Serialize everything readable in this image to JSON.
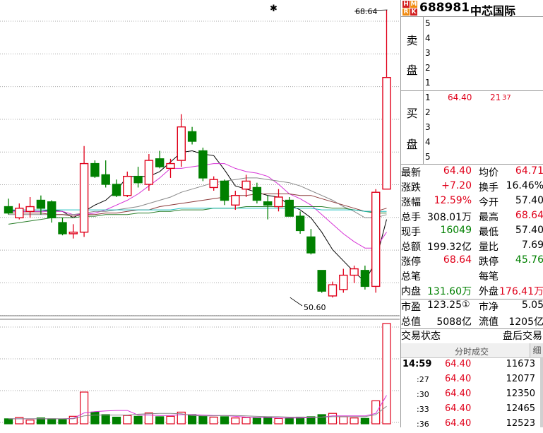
{
  "chart": {
    "marker": "✱",
    "high_label": "68.64",
    "low_label": "50.60"
  },
  "header": {
    "badge": [
      "H",
      "M",
      "R",
      "K"
    ],
    "code": "688981",
    "name": "中芯国际"
  },
  "orderbook": {
    "sell_label_1": "卖",
    "sell_label_2": "盘",
    "sell_levels": [
      "5",
      "4",
      "3",
      "2",
      "1"
    ],
    "buy_label_1": "买",
    "buy_label_2": "盘",
    "buy_levels": [
      "1",
      "2",
      "3",
      "4",
      "5"
    ],
    "buy1_price": "64.40",
    "buy1_volume": "21",
    "buy1_volume_small": "37"
  },
  "stats": [
    {
      "l1": "最新",
      "v1": "64.40",
      "c1": "red",
      "l2": "均价",
      "v2": "64.71",
      "c2": "red"
    },
    {
      "l1": "涨跌",
      "v1": "+7.20",
      "c1": "red",
      "l2": "换手",
      "v2": "16.46%",
      "c2": "black"
    },
    {
      "l1": "涨幅",
      "v1": "12.59%",
      "c1": "red",
      "l2": "今开",
      "v2": "57.40",
      "c2": "black"
    },
    {
      "l1": "总手",
      "v1": "308.01万",
      "c1": "black",
      "l2": "最高",
      "v2": "68.64",
      "c2": "red"
    },
    {
      "l1": "现手",
      "v1": "16049",
      "c1": "grn",
      "l2": "最低",
      "v2": "57.40",
      "c2": "black"
    },
    {
      "l1": "总额",
      "v1": "199.32亿",
      "c1": "black",
      "l2": "量比",
      "v2": "7.69",
      "c2": "black"
    },
    {
      "l1": "涨停",
      "v1": "68.64",
      "c1": "red",
      "l2": "跌停",
      "v2": "45.76",
      "c2": "grn"
    },
    {
      "l1": "总笔",
      "v1": "",
      "c1": "black",
      "l2": "每笔",
      "v2": "",
      "c2": "black"
    },
    {
      "l1": "内盘",
      "v1": "131.60万",
      "c1": "grn",
      "l2": "外盘",
      "v2": "176.41万",
      "c2": "red"
    }
  ],
  "stats2": [
    {
      "l1": "市盈",
      "v1": "123.25",
      "icon": "①",
      "l2": "市净",
      "v2": "5.05"
    },
    {
      "l1": "总值",
      "v1": "5088亿",
      "icon": "",
      "l2": "流值",
      "v2": "1205亿"
    }
  ],
  "trade_status": {
    "left": "交易状态",
    "right": "盘后交易"
  },
  "ticks": {
    "title": "分时成交",
    "side_button": "细",
    "rows": [
      {
        "time": "14:59",
        "price": "64.40",
        "vol": "11673"
      },
      {
        "time": ":27",
        "price": "64.40",
        "vol": "12077"
      },
      {
        "time": ":30",
        "price": "64.40",
        "vol": "12350"
      },
      {
        "time": ":33",
        "price": "64.40",
        "vol": "12465"
      },
      {
        "time": ":36",
        "price": "64.40",
        "vol": "12523"
      }
    ]
  },
  "colors": {
    "up": "#e0001a",
    "down": "#008000",
    "grid": "#a9a9a9"
  },
  "chart_data": {
    "type": "candlestick",
    "candles": [
      {
        "o": 56.3,
        "h": 56.8,
        "l": 55.8,
        "c": 55.9
      },
      {
        "o": 55.6,
        "h": 56.5,
        "l": 55.5,
        "c": 56.2
      },
      {
        "o": 56.0,
        "h": 56.9,
        "l": 55.6,
        "c": 56.3
      },
      {
        "o": 56.7,
        "h": 57.0,
        "l": 55.8,
        "c": 56.2
      },
      {
        "o": 56.6,
        "h": 56.7,
        "l": 55.3,
        "c": 55.6
      },
      {
        "o": 55.3,
        "h": 55.6,
        "l": 54.5,
        "c": 54.6
      },
      {
        "o": 54.6,
        "h": 55.2,
        "l": 54.3,
        "c": 54.7
      },
      {
        "o": 54.7,
        "h": 60.1,
        "l": 54.4,
        "c": 59.0
      },
      {
        "o": 59.0,
        "h": 59.2,
        "l": 58.1,
        "c": 58.2
      },
      {
        "o": 58.3,
        "h": 59.2,
        "l": 57.5,
        "c": 57.7
      },
      {
        "o": 57.7,
        "h": 58.0,
        "l": 56.9,
        "c": 57.0
      },
      {
        "o": 57.0,
        "h": 58.5,
        "l": 56.9,
        "c": 58.2
      },
      {
        "o": 58.2,
        "h": 58.8,
        "l": 57.5,
        "c": 57.8
      },
      {
        "o": 57.7,
        "h": 59.6,
        "l": 57.3,
        "c": 59.2
      },
      {
        "o": 59.3,
        "h": 59.8,
        "l": 58.7,
        "c": 58.8
      },
      {
        "o": 58.7,
        "h": 59.3,
        "l": 58.1,
        "c": 59.0
      },
      {
        "o": 59.2,
        "h": 62.1,
        "l": 58.8,
        "c": 61.3
      },
      {
        "o": 61.0,
        "h": 61.3,
        "l": 60.2,
        "c": 60.4
      },
      {
        "o": 59.8,
        "h": 60.0,
        "l": 57.9,
        "c": 58.1
      },
      {
        "o": 57.5,
        "h": 58.2,
        "l": 57.3,
        "c": 58.0
      },
      {
        "o": 57.9,
        "h": 58.0,
        "l": 56.4,
        "c": 56.7
      },
      {
        "o": 56.4,
        "h": 57.3,
        "l": 56.1,
        "c": 57.0
      },
      {
        "o": 57.4,
        "h": 58.3,
        "l": 56.9,
        "c": 57.9
      },
      {
        "o": 57.5,
        "h": 57.8,
        "l": 56.5,
        "c": 56.7
      },
      {
        "o": 56.6,
        "h": 57.0,
        "l": 55.5,
        "c": 56.4
      },
      {
        "o": 56.3,
        "h": 57.4,
        "l": 56.0,
        "c": 56.9
      },
      {
        "o": 56.7,
        "h": 56.9,
        "l": 55.7,
        "c": 55.7
      },
      {
        "o": 55.7,
        "h": 56.0,
        "l": 54.6,
        "c": 54.8
      },
      {
        "o": 54.4,
        "h": 54.9,
        "l": 53.3,
        "c": 53.4
      },
      {
        "o": 52.3,
        "h": 52.3,
        "l": 50.9,
        "c": 51.0
      },
      {
        "o": 50.7,
        "h": 51.6,
        "l": 50.6,
        "c": 51.4
      },
      {
        "o": 51.1,
        "h": 52.4,
        "l": 50.9,
        "c": 52.0
      },
      {
        "o": 52.0,
        "h": 52.6,
        "l": 51.5,
        "c": 52.4
      },
      {
        "o": 52.3,
        "h": 52.6,
        "l": 51.1,
        "c": 51.3
      },
      {
        "o": 51.3,
        "h": 57.4,
        "l": 50.9,
        "c": 57.2
      },
      {
        "o": 57.4,
        "h": 68.64,
        "l": 57.4,
        "c": 64.4
      }
    ],
    "ma": [
      {
        "name": "MA5",
        "color": "#000000",
        "values": [
          56.1,
          56.0,
          56.0,
          56.0,
          56.1,
          56.0,
          55.6,
          56.0,
          56.4,
          56.7,
          57.3,
          58.2,
          58.2,
          58.2,
          58.5,
          59.1,
          59.7,
          59.8,
          59.6,
          59.5,
          58.6,
          57.6,
          57.4,
          57.2,
          57.0,
          56.9,
          56.4,
          56.1,
          55.6,
          54.7,
          53.6,
          52.9,
          52.2,
          51.6,
          52.9,
          55.5
        ]
      },
      {
        "name": "MA10",
        "color": "#d633d6",
        "values": [
          56.0,
          56.0,
          56.0,
          56.0,
          56.0,
          56.0,
          55.8,
          55.8,
          55.9,
          56.1,
          56.4,
          56.7,
          57.1,
          57.6,
          58.1,
          58.7,
          58.7,
          58.8,
          58.9,
          59.0,
          59.0,
          58.7,
          58.5,
          58.4,
          58.2,
          57.7,
          57.1,
          56.8,
          56.4,
          55.8,
          55.2,
          54.6,
          54.1,
          53.7,
          53.7,
          54.7
        ]
      },
      {
        "name": "MA20",
        "color": "#888888",
        "values": [
          55.8,
          55.8,
          55.8,
          55.8,
          55.8,
          55.8,
          55.8,
          55.9,
          56.0,
          56.0,
          56.1,
          56.2,
          56.3,
          56.5,
          56.7,
          56.9,
          57.2,
          57.4,
          57.6,
          57.8,
          57.9,
          58.0,
          58.1,
          58.1,
          58.0,
          57.9,
          57.8,
          57.6,
          57.3,
          57.0,
          56.7,
          56.3,
          56.0,
          55.6,
          55.6,
          55.8
        ]
      },
      {
        "name": "MA30",
        "color": "#8b3a3a",
        "values": [
          55.9,
          55.9,
          55.9,
          55.9,
          55.8,
          55.8,
          55.7,
          55.8,
          55.8,
          55.9,
          55.9,
          56.0,
          56.1,
          56.1,
          56.3,
          56.4,
          56.5,
          56.6,
          56.7,
          56.8,
          56.9,
          57.0,
          57.0,
          57.1,
          57.1,
          57.1,
          57.1,
          57.0,
          57.0,
          56.8,
          56.6,
          56.4,
          56.2,
          56.0,
          56.0,
          56.2
        ]
      },
      {
        "name": "MA60",
        "color": "#2a7e2a",
        "values": [
          55.2,
          55.3,
          55.4,
          55.5,
          55.6,
          55.6,
          55.6,
          55.7,
          55.7,
          55.8,
          55.8,
          55.8,
          55.9,
          55.9,
          56.0,
          56.0,
          56.1,
          56.1,
          56.1,
          56.2,
          56.2,
          56.2,
          56.3,
          56.3,
          56.3,
          56.3,
          56.3,
          56.3,
          56.3,
          56.3,
          56.2,
          56.2,
          56.1,
          56.0,
          55.9,
          55.9
        ]
      },
      {
        "name": "MA120",
        "color": "#20c0c0",
        "values": [
          56.1,
          56.1,
          56.1,
          56.1,
          56.1,
          56.1,
          56.1,
          56.1,
          56.1,
          56.1,
          56.1,
          56.1,
          56.1,
          56.1,
          56.1,
          56.1,
          56.2,
          56.2,
          56.2,
          56.2,
          56.2,
          56.2,
          56.2,
          56.2,
          56.2,
          56.2,
          56.2,
          56.2,
          56.2,
          56.1,
          56.1,
          56.1,
          56.1,
          56.0,
          56.0,
          56.0
        ]
      }
    ],
    "volume": [
      12,
      15,
      9,
      14,
      12,
      10,
      18,
      76,
      28,
      22,
      16,
      20,
      18,
      26,
      17,
      18,
      28,
      22,
      18,
      16,
      17,
      14,
      15,
      14,
      16,
      13,
      14,
      16,
      17,
      22,
      25,
      17,
      14,
      13,
      55,
      240
    ],
    "volume_ma": [
      {
        "name": "VMA5",
        "color": "#d633d6",
        "values": [
          12,
          12,
          12,
          12,
          12,
          12,
          13,
          26,
          29,
          31,
          32,
          32,
          21,
          21,
          20,
          20,
          22,
          22,
          21,
          20,
          20,
          18,
          16,
          15,
          15,
          14,
          14,
          14,
          15,
          16,
          19,
          19,
          19,
          19,
          25,
          68
        ]
      },
      {
        "name": "VMA10",
        "color": "#888888",
        "values": [
          12,
          12,
          12,
          12,
          12,
          12,
          12,
          19,
          21,
          21,
          21,
          21,
          23,
          24,
          25,
          25,
          24,
          20,
          19,
          19,
          20,
          20,
          19,
          18,
          17,
          17,
          16,
          16,
          16,
          16,
          17,
          17,
          17,
          17,
          22,
          42
        ]
      }
    ],
    "price_range": [
      49.9,
      68.64
    ],
    "volume_max": 240
  }
}
